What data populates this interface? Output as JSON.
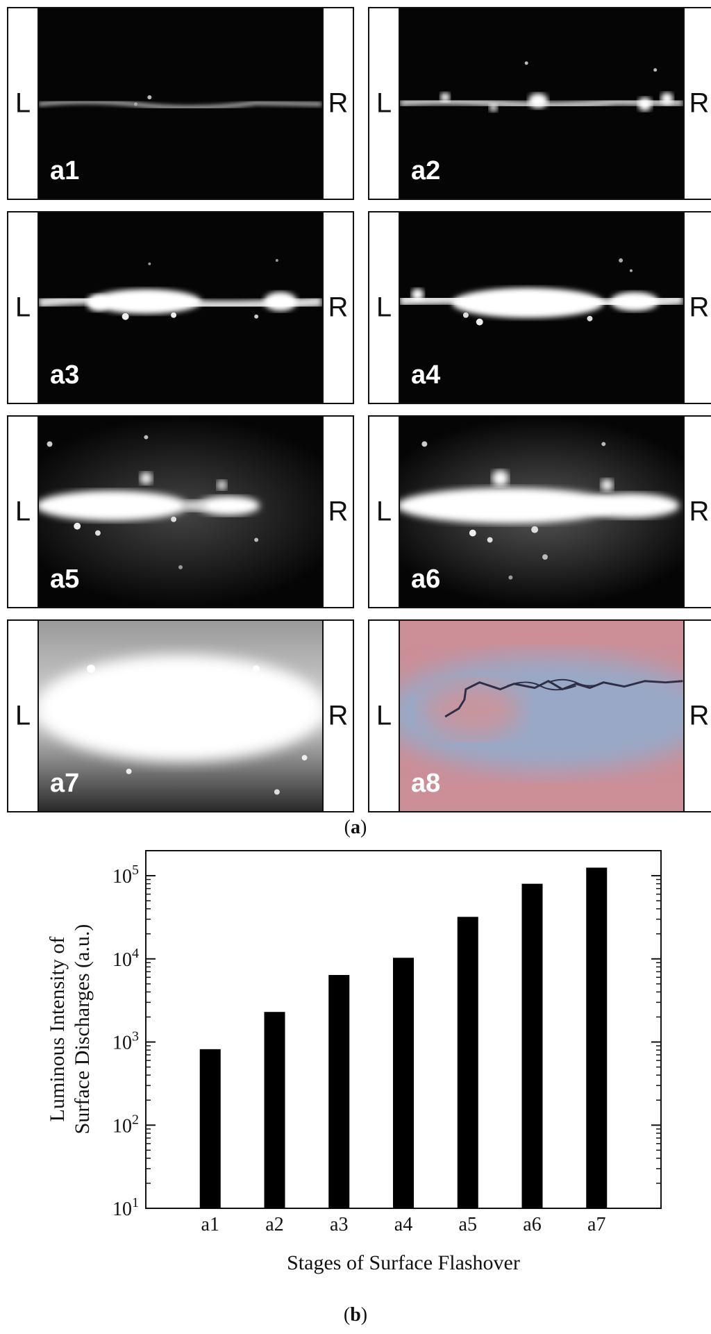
{
  "figure_a": {
    "caption_letter": "a",
    "electrode_left": "L",
    "electrode_right": "R",
    "panels": [
      {
        "label": "a1",
        "level": 0.05
      },
      {
        "label": "a2",
        "level": 0.22
      },
      {
        "label": "a3",
        "level": 0.45
      },
      {
        "label": "a4",
        "level": 0.55
      },
      {
        "label": "a5",
        "level": 0.7
      },
      {
        "label": "a6",
        "level": 0.85
      },
      {
        "label": "a7",
        "level": 1.0
      },
      {
        "label": "a8",
        "level": 0
      }
    ]
  },
  "figure_b": {
    "caption_letter": "b"
  },
  "chart_data": {
    "type": "bar",
    "categories": [
      "a1",
      "a2",
      "a3",
      "a4",
      "a5",
      "a6",
      "a7"
    ],
    "values": [
      820,
      2300,
      6400,
      10300,
      32000,
      80000,
      125000
    ],
    "xlabel": "Stages of Surface Flashover",
    "ylabel_line1": "Luminous Intensity of",
    "ylabel_line2": "Surface Discharges (a.u.)",
    "yscale": "log",
    "ylim": [
      10,
      200000
    ],
    "yticks": [
      {
        "value": 10,
        "base": "10",
        "exp": "1"
      },
      {
        "value": 100,
        "base": "10",
        "exp": "2"
      },
      {
        "value": 1000,
        "base": "10",
        "exp": "3"
      },
      {
        "value": 10000,
        "base": "10",
        "exp": "4"
      },
      {
        "value": 100000,
        "base": "10",
        "exp": "5"
      }
    ],
    "bar_color": "#000000",
    "grid": false
  }
}
